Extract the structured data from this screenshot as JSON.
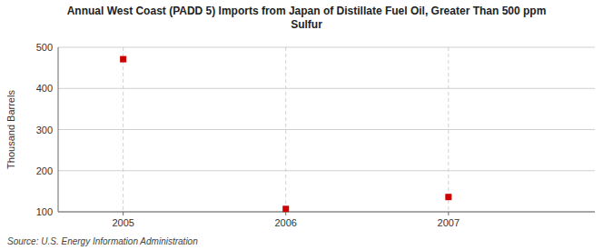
{
  "chart_data": {
    "type": "scatter",
    "title": "Annual West Coast (PADD 5) Imports from Japan of Distillate Fuel Oil, Greater Than 500 ppm\nSulfur",
    "y_label": "Thousand Barrels",
    "source": "Source: U.S. Energy Information Administration",
    "x": [
      2005,
      2006,
      2007
    ],
    "values": [
      471,
      107,
      136
    ],
    "color": "#cc0000",
    "marker": "square",
    "xlim": [
      2004.6,
      2007.9
    ],
    "xticks": [
      2005,
      2006,
      2007
    ],
    "ylim": [
      100,
      500
    ],
    "yticks": [
      100,
      200,
      300,
      400,
      500
    ],
    "grid": true
  }
}
